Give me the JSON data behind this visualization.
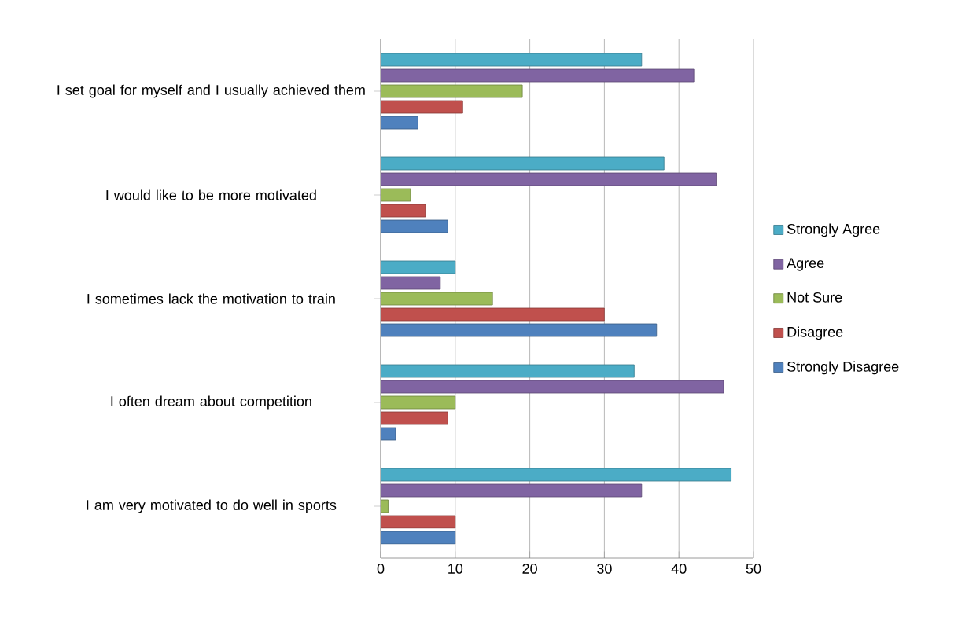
{
  "chart_data": {
    "type": "bar",
    "orientation": "horizontal",
    "categories": [
      "I set goal for myself and I usually achieved them",
      "I would like to be more motivated",
      "I sometimes lack the motivation to train",
      "I often dream about competition",
      "I am very motivated to do well in sports"
    ],
    "series": [
      {
        "name": "Strongly Agree",
        "color": "#4bacc6",
        "values": [
          35,
          38,
          10,
          34,
          47
        ]
      },
      {
        "name": "Agree",
        "color": "#8064a2",
        "values": [
          42,
          45,
          8,
          46,
          35
        ]
      },
      {
        "name": "Not Sure",
        "color": "#9bbb59",
        "values": [
          19,
          4,
          15,
          10,
          1
        ]
      },
      {
        "name": "Disagree",
        "color": "#c0504d",
        "values": [
          11,
          6,
          30,
          9,
          10
        ]
      },
      {
        "name": "Strongly Disagree",
        "color": "#4f81bd",
        "values": [
          5,
          9,
          37,
          2,
          10
        ]
      }
    ],
    "xlim": [
      0,
      50
    ],
    "xticks": [
      0,
      10,
      20,
      30,
      40,
      50
    ],
    "grid": "x",
    "legend": "right"
  }
}
